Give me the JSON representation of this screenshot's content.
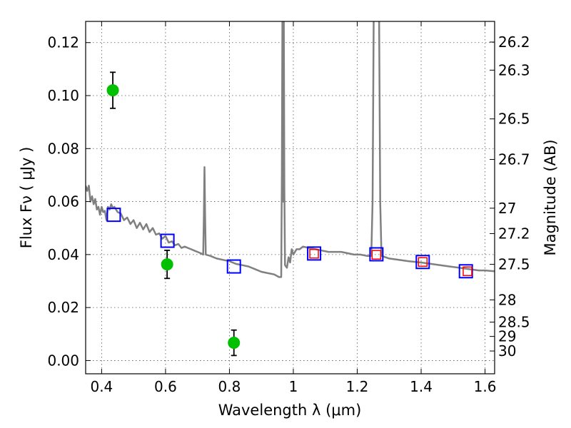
{
  "chart_data": {
    "type": "scatter",
    "xlabel": "Wavelength  λ (μm)",
    "ylabel": "Flux  Fν  ( μJy )",
    "ylabel_right": "Magnitude (AB)",
    "xlim": [
      0.35,
      1.63
    ],
    "ylim": [
      -0.005,
      0.128
    ],
    "grid": true,
    "x_ticks": [
      {
        "value": 0.4,
        "label": "0.4"
      },
      {
        "value": 0.6,
        "label": "0.6"
      },
      {
        "value": 0.8,
        "label": "0.8"
      },
      {
        "value": 1.0,
        "label": "1"
      },
      {
        "value": 1.2,
        "label": "1.2"
      },
      {
        "value": 1.4,
        "label": "1.4"
      },
      {
        "value": 1.6,
        "label": "1.6"
      }
    ],
    "y_ticks": [
      {
        "value": 0.0,
        "label": "0.00"
      },
      {
        "value": 0.02,
        "label": "0.02"
      },
      {
        "value": 0.04,
        "label": "0.04"
      },
      {
        "value": 0.06,
        "label": "0.06"
      },
      {
        "value": 0.08,
        "label": "0.08"
      },
      {
        "value": 0.1,
        "label": "0.10"
      },
      {
        "value": 0.12,
        "label": "0.12"
      }
    ],
    "right_ticks": [
      {
        "flux": 0.1202,
        "label": "26.2"
      },
      {
        "flux": 0.1096,
        "label": "26.3"
      },
      {
        "flux": 0.0912,
        "label": "26.5"
      },
      {
        "flux": 0.0759,
        "label": "26.7"
      },
      {
        "flux": 0.0575,
        "label": "27"
      },
      {
        "flux": 0.0479,
        "label": "27.2"
      },
      {
        "flux": 0.0363,
        "label": "27.5"
      },
      {
        "flux": 0.0229,
        "label": "28"
      },
      {
        "flux": 0.0145,
        "label": "28.5"
      },
      {
        "flux": 0.0091,
        "label": "29"
      },
      {
        "flux": 0.0036,
        "label": "30"
      }
    ],
    "observed": {
      "color": "#00c000",
      "points": [
        {
          "x": 0.435,
          "y": 0.102,
          "yerr": 0.0068
        },
        {
          "x": 0.605,
          "y": 0.0363,
          "yerr": 0.0053
        },
        {
          "x": 0.814,
          "y": 0.0067,
          "yerr": 0.0048
        }
      ]
    },
    "model_blue": {
      "color": "#0000ff",
      "points": [
        {
          "x": 0.438,
          "y": 0.055
        },
        {
          "x": 0.606,
          "y": 0.0452
        },
        {
          "x": 0.814,
          "y": 0.0355
        },
        {
          "x": 1.065,
          "y": 0.0404
        },
        {
          "x": 1.26,
          "y": 0.0401
        },
        {
          "x": 1.405,
          "y": 0.0372
        },
        {
          "x": 1.54,
          "y": 0.0337
        }
      ]
    },
    "model_red": {
      "color": "#ff0000",
      "points": [
        {
          "x": 1.065,
          "y": 0.0403
        },
        {
          "x": 1.26,
          "y": 0.0399
        },
        {
          "x": 1.405,
          "y": 0.0372
        },
        {
          "x": 1.545,
          "y": 0.0337
        }
      ]
    },
    "spectrum": {
      "color": "#808080",
      "points": [
        [
          0.35,
          0.066
        ],
        [
          0.355,
          0.064
        ],
        [
          0.36,
          0.066
        ],
        [
          0.365,
          0.06
        ],
        [
          0.37,
          0.062
        ],
        [
          0.375,
          0.059
        ],
        [
          0.38,
          0.061
        ],
        [
          0.385,
          0.057
        ],
        [
          0.39,
          0.058
        ],
        [
          0.395,
          0.055
        ],
        [
          0.4,
          0.058
        ],
        [
          0.405,
          0.056
        ],
        [
          0.41,
          0.0565
        ],
        [
          0.415,
          0.053
        ],
        [
          0.42,
          0.058
        ],
        [
          0.425,
          0.057
        ],
        [
          0.43,
          0.059
        ],
        [
          0.435,
          0.0575
        ],
        [
          0.44,
          0.058
        ],
        [
          0.45,
          0.056
        ],
        [
          0.46,
          0.0555
        ],
        [
          0.47,
          0.053
        ],
        [
          0.48,
          0.054
        ],
        [
          0.49,
          0.0515
        ],
        [
          0.5,
          0.053
        ],
        [
          0.51,
          0.05
        ],
        [
          0.52,
          0.052
        ],
        [
          0.53,
          0.0495
        ],
        [
          0.54,
          0.0515
        ],
        [
          0.55,
          0.0485
        ],
        [
          0.56,
          0.05
        ],
        [
          0.57,
          0.0475
        ],
        [
          0.58,
          0.048
        ],
        [
          0.59,
          0.046
        ],
        [
          0.6,
          0.047
        ],
        [
          0.61,
          0.0445
        ],
        [
          0.62,
          0.045
        ],
        [
          0.63,
          0.0435
        ],
        [
          0.64,
          0.044
        ],
        [
          0.65,
          0.0425
        ],
        [
          0.66,
          0.043
        ],
        [
          0.67,
          0.0425
        ],
        [
          0.68,
          0.042
        ],
        [
          0.69,
          0.0415
        ],
        [
          0.7,
          0.041
        ],
        [
          0.71,
          0.0405
        ],
        [
          0.718,
          0.04
        ],
        [
          0.72,
          0.054
        ],
        [
          0.722,
          0.073
        ],
        [
          0.724,
          0.054
        ],
        [
          0.726,
          0.04
        ],
        [
          0.74,
          0.0395
        ],
        [
          0.76,
          0.0385
        ],
        [
          0.78,
          0.038
        ],
        [
          0.8,
          0.0375
        ],
        [
          0.82,
          0.0365
        ],
        [
          0.84,
          0.036
        ],
        [
          0.86,
          0.0355
        ],
        [
          0.88,
          0.0345
        ],
        [
          0.9,
          0.0335
        ],
        [
          0.92,
          0.033
        ],
        [
          0.94,
          0.0325
        ],
        [
          0.955,
          0.0315
        ],
        [
          0.962,
          0.0315
        ],
        [
          0.964,
          0.07
        ],
        [
          0.966,
          0.14
        ],
        [
          0.968,
          0.06
        ],
        [
          0.97,
          0.14
        ],
        [
          0.972,
          0.065
        ],
        [
          0.974,
          0.036
        ],
        [
          0.98,
          0.035
        ],
        [
          0.985,
          0.039
        ],
        [
          0.99,
          0.037
        ],
        [
          0.995,
          0.042
        ],
        [
          1.0,
          0.04
        ],
        [
          1.01,
          0.042
        ],
        [
          1.02,
          0.042
        ],
        [
          1.03,
          0.043
        ],
        [
          1.05,
          0.0425
        ],
        [
          1.07,
          0.042
        ],
        [
          1.09,
          0.0415
        ],
        [
          1.11,
          0.041
        ],
        [
          1.13,
          0.041
        ],
        [
          1.15,
          0.041
        ],
        [
          1.17,
          0.0405
        ],
        [
          1.19,
          0.04
        ],
        [
          1.21,
          0.04
        ],
        [
          1.23,
          0.0395
        ],
        [
          1.244,
          0.0395
        ],
        [
          1.248,
          0.06
        ],
        [
          1.252,
          0.14
        ],
        [
          1.26,
          0.14
        ],
        [
          1.268,
          0.14
        ],
        [
          1.272,
          0.06
        ],
        [
          1.276,
          0.0395
        ],
        [
          1.3,
          0.0385
        ],
        [
          1.33,
          0.038
        ],
        [
          1.36,
          0.0375
        ],
        [
          1.4,
          0.037
        ],
        [
          1.43,
          0.0365
        ],
        [
          1.46,
          0.036
        ],
        [
          1.49,
          0.0355
        ],
        [
          1.52,
          0.035
        ],
        [
          1.55,
          0.0345
        ],
        [
          1.58,
          0.034
        ],
        [
          1.6,
          0.034
        ],
        [
          1.63,
          0.0337
        ]
      ]
    }
  }
}
